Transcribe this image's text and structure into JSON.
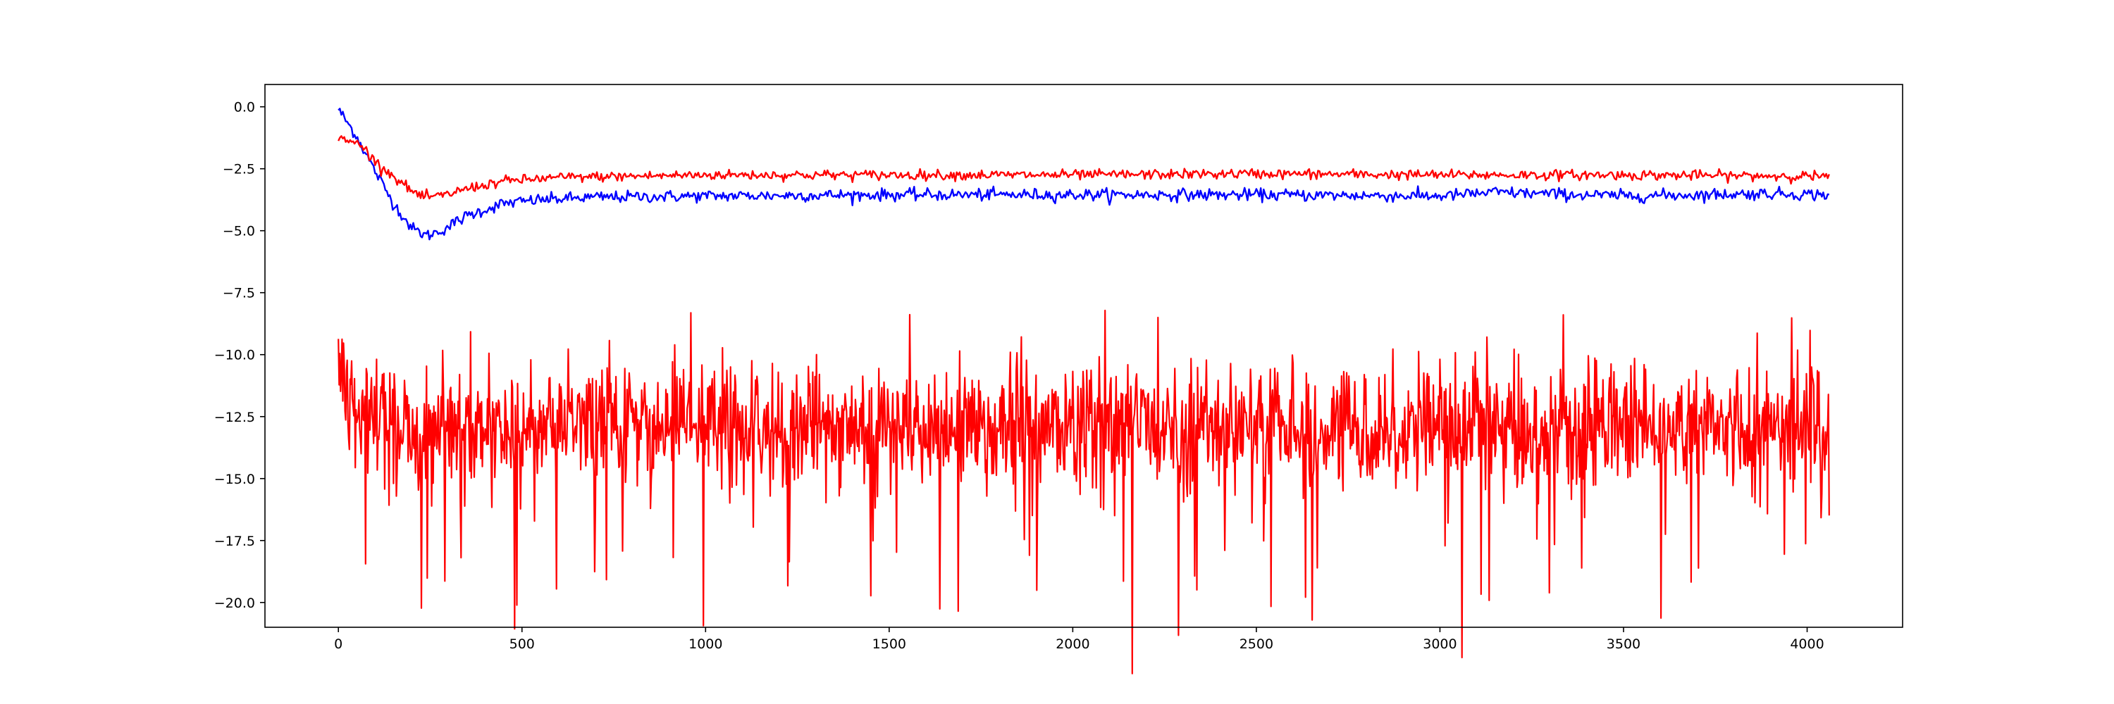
{
  "chart_data": {
    "type": "line",
    "title": "",
    "xlabel": "",
    "ylabel": "",
    "xlim": [
      -200,
      4260
    ],
    "ylim": [
      -20.0,
      0.0
    ],
    "ylim_view": [
      -21.0,
      0.9
    ],
    "grid": false,
    "legend": "none",
    "x_ticks": [
      0,
      500,
      1000,
      1500,
      2000,
      2500,
      3000,
      3500,
      4000
    ],
    "x_tick_labels": [
      "0",
      "500",
      "1000",
      "1500",
      "2000",
      "2500",
      "3000",
      "3500",
      "4000"
    ],
    "y_ticks": [
      0.0,
      -2.5,
      -5.0,
      -7.5,
      -10.0,
      -12.5,
      -15.0,
      -17.5,
      -20.0
    ],
    "y_tick_labels": [
      "0.0",
      "−2.5",
      "−5.0",
      "−7.5",
      "−10.0",
      "−12.5",
      "−15.0",
      "−17.5",
      "−20.0"
    ],
    "x_count": 4060,
    "series": [
      {
        "color": "#0000ff",
        "noise": 0.12,
        "values": [
          [
            0,
            -0.1
          ],
          [
            50,
            -1.2
          ],
          [
            100,
            -2.6
          ],
          [
            150,
            -3.9
          ],
          [
            200,
            -4.9
          ],
          [
            240,
            -5.2
          ],
          [
            280,
            -5.0
          ],
          [
            350,
            -4.4
          ],
          [
            450,
            -3.9
          ],
          [
            550,
            -3.75
          ],
          [
            700,
            -3.65
          ],
          [
            1000,
            -3.6
          ],
          [
            1500,
            -3.55
          ],
          [
            2000,
            -3.55
          ],
          [
            2500,
            -3.55
          ],
          [
            3000,
            -3.6
          ],
          [
            3150,
            -3.45
          ],
          [
            3500,
            -3.6
          ],
          [
            3900,
            -3.5
          ],
          [
            4060,
            -3.55
          ]
        ]
      },
      {
        "color": "#ff0000",
        "noise": 0.1,
        "values": [
          [
            0,
            -1.3
          ],
          [
            30,
            -1.4
          ],
          [
            60,
            -1.5
          ],
          [
            100,
            -2.2
          ],
          [
            150,
            -2.8
          ],
          [
            200,
            -3.4
          ],
          [
            230,
            -3.65
          ],
          [
            280,
            -3.6
          ],
          [
            350,
            -3.3
          ],
          [
            450,
            -3.0
          ],
          [
            600,
            -2.85
          ],
          [
            800,
            -2.8
          ],
          [
            1000,
            -2.75
          ],
          [
            1500,
            -2.75
          ],
          [
            2000,
            -2.75
          ],
          [
            2500,
            -2.7
          ],
          [
            3000,
            -2.75
          ],
          [
            3500,
            -2.75
          ],
          [
            4060,
            -2.8
          ]
        ]
      },
      {
        "color": "#ff0000",
        "noise": 1.25,
        "spike_depth": [
          3.5,
          7.5
        ],
        "values": [
          [
            0,
            -11.5
          ],
          [
            50,
            -11.8
          ],
          [
            150,
            -13.0
          ],
          [
            250,
            -13.4
          ],
          [
            400,
            -13.2
          ],
          [
            600,
            -13.0
          ],
          [
            1000,
            -13.0
          ],
          [
            2000,
            -13.0
          ],
          [
            3000,
            -13.0
          ],
          [
            4060,
            -13.0
          ]
        ]
      }
    ]
  }
}
